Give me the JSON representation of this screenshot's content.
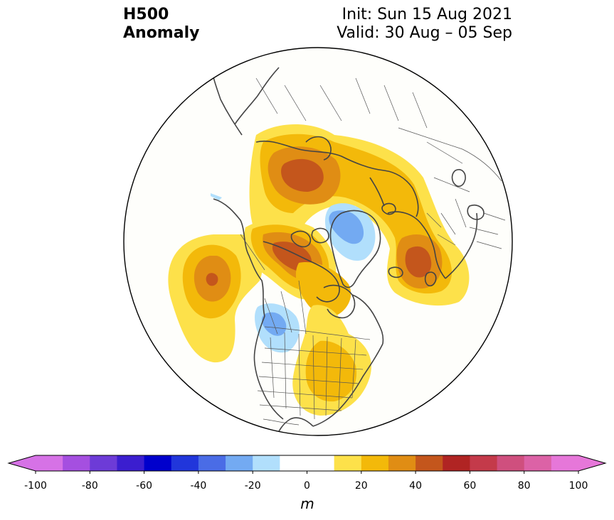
{
  "header": {
    "title_line1": "H500",
    "title_line2": "Anomaly",
    "init": "Init: Sun 15 Aug 2021",
    "valid": "Valid: 30 Aug – 05 Sep"
  },
  "map": {
    "projection": "north polar stereographic",
    "features": [
      "coastlines",
      "country borders",
      "US state borders"
    ],
    "anomaly_centers": [
      {
        "name": "Aleutians / North Pacific ridge",
        "sign": "positive",
        "peak_m": 55
      },
      {
        "name": "Alaska / Yukon ridge",
        "sign": "positive",
        "peak_m": 55
      },
      {
        "name": "Northern Siberia ridge",
        "sign": "positive",
        "peak_m": 55
      },
      {
        "name": "Western Europe / Scandinavia ridge",
        "sign": "positive",
        "peak_m": 55
      },
      {
        "name": "Eastern US ridge",
        "sign": "positive",
        "peak_m": 25
      },
      {
        "name": "Greenland trough",
        "sign": "negative",
        "peak_m": -35
      },
      {
        "name": "Pacific Northwest trough",
        "sign": "negative",
        "peak_m": -35
      }
    ]
  },
  "colorbar": {
    "unit_label": "m",
    "min": -100,
    "max": 100,
    "extend": "both",
    "tick_labels": [
      "-100",
      "-80",
      "-60",
      "-40",
      "-20",
      "0",
      "20",
      "40",
      "60",
      "80",
      "100"
    ],
    "tick_values": [
      -100,
      -80,
      -60,
      -40,
      -20,
      0,
      20,
      40,
      60,
      80,
      100
    ],
    "bins": [
      {
        "from": -100,
        "to": -90,
        "color": "#d672e6"
      },
      {
        "from": -90,
        "to": -80,
        "color": "#a54fe0"
      },
      {
        "from": -80,
        "to": -70,
        "color": "#6d3bd7"
      },
      {
        "from": -70,
        "to": -60,
        "color": "#3b1ecf"
      },
      {
        "from": -60,
        "to": -50,
        "color": "#0000cc"
      },
      {
        "from": -50,
        "to": -40,
        "color": "#2136db"
      },
      {
        "from": -40,
        "to": -30,
        "color": "#4a6ce6"
      },
      {
        "from": -30,
        "to": -20,
        "color": "#73aaf2"
      },
      {
        "from": -20,
        "to": -10,
        "color": "#b1dffc"
      },
      {
        "from": -10,
        "to": 10,
        "color": "#ffffff"
      },
      {
        "from": 10,
        "to": 20,
        "color": "#fde14a"
      },
      {
        "from": 20,
        "to": 30,
        "color": "#f3b90a"
      },
      {
        "from": 30,
        "to": 40,
        "color": "#e08d14"
      },
      {
        "from": 40,
        "to": 50,
        "color": "#c4561c"
      },
      {
        "from": 50,
        "to": 60,
        "color": "#b02423"
      },
      {
        "from": 60,
        "to": 70,
        "color": "#c43a4a"
      },
      {
        "from": 70,
        "to": 80,
        "color": "#cf4f7e"
      },
      {
        "from": 80,
        "to": 90,
        "color": "#dc62a6"
      },
      {
        "from": 90,
        "to": 100,
        "color": "#e677d9"
      }
    ],
    "under_color": "#d672e6",
    "over_color": "#e677d9"
  },
  "colors": {
    "land_outline": "#444444",
    "border": "#555555",
    "disc_fill": "#fefefb"
  }
}
